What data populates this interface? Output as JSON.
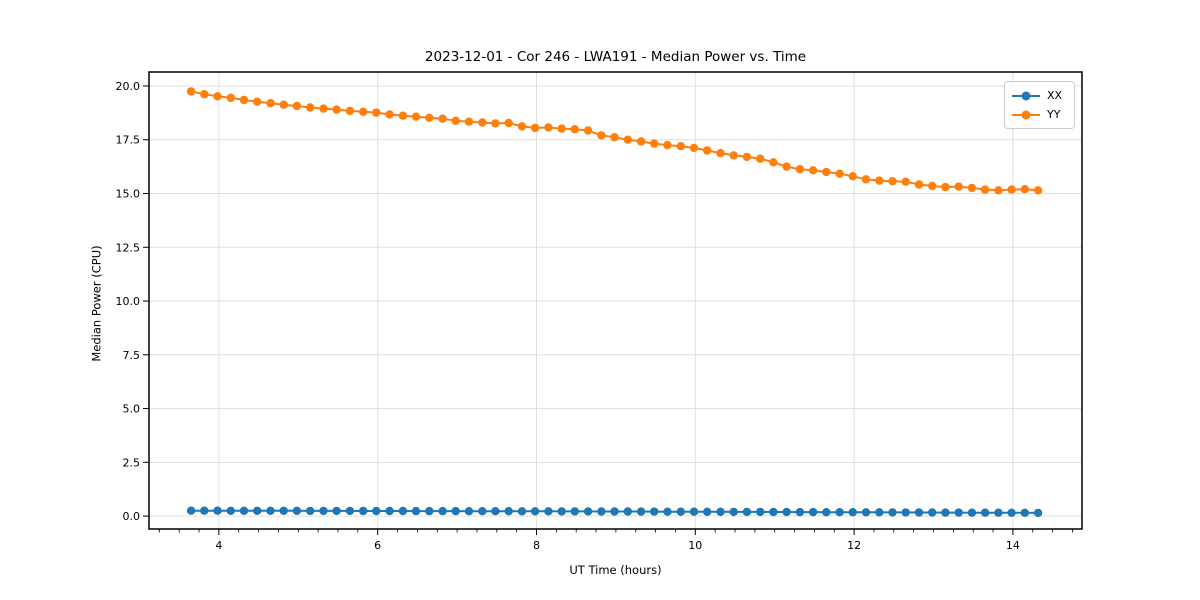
{
  "chart_data": {
    "type": "line",
    "title": "2023-12-01 - Cor 246 - LWA191 - Median Power vs. Time",
    "xlabel": "UT Time (hours)",
    "ylabel": "Median Power (CPU)",
    "xlim": [
      3.12,
      14.87
    ],
    "ylim": [
      -0.6,
      20.65
    ],
    "x_major_ticks": [
      4,
      6,
      8,
      10,
      12,
      14
    ],
    "x_minor_step": 0.25,
    "y_major_ticks": [
      0.0,
      2.5,
      5.0,
      7.5,
      10.0,
      12.5,
      15.0,
      17.5,
      20.0
    ],
    "grid": true,
    "legend_position": "upper right",
    "x": [
      3.65,
      3.817,
      3.983,
      4.15,
      4.317,
      4.483,
      4.65,
      4.817,
      4.983,
      5.15,
      5.317,
      5.483,
      5.65,
      5.817,
      5.983,
      6.15,
      6.317,
      6.483,
      6.65,
      6.817,
      6.983,
      7.15,
      7.317,
      7.483,
      7.65,
      7.817,
      7.983,
      8.15,
      8.317,
      8.483,
      8.65,
      8.817,
      8.983,
      9.15,
      9.317,
      9.483,
      9.65,
      9.817,
      9.983,
      10.15,
      10.317,
      10.483,
      10.65,
      10.817,
      10.983,
      11.15,
      11.317,
      11.483,
      11.65,
      11.817,
      11.983,
      12.15,
      12.317,
      12.483,
      12.65,
      12.817,
      12.983,
      13.15,
      13.317,
      13.483,
      13.65,
      13.817,
      13.983,
      14.15,
      14.317
    ],
    "series": [
      {
        "name": "XX",
        "color": "#1f77b4",
        "values": [
          0.25,
          0.25,
          0.249,
          0.248,
          0.247,
          0.247,
          0.246,
          0.245,
          0.244,
          0.243,
          0.242,
          0.241,
          0.24,
          0.239,
          0.238,
          0.237,
          0.236,
          0.234,
          0.233,
          0.232,
          0.231,
          0.23,
          0.228,
          0.227,
          0.226,
          0.224,
          0.223,
          0.221,
          0.22,
          0.218,
          0.217,
          0.215,
          0.213,
          0.212,
          0.21,
          0.208,
          0.206,
          0.205,
          0.203,
          0.201,
          0.199,
          0.197,
          0.195,
          0.193,
          0.191,
          0.189,
          0.187,
          0.185,
          0.183,
          0.181,
          0.179,
          0.177,
          0.175,
          0.172,
          0.17,
          0.168,
          0.166,
          0.164,
          0.162,
          0.16,
          0.158,
          0.156,
          0.154,
          0.152,
          0.15
        ]
      },
      {
        "name": "YY",
        "color": "#ff7f0e",
        "values": [
          19.75,
          19.62,
          19.52,
          19.45,
          19.35,
          19.27,
          19.2,
          19.13,
          19.07,
          19.0,
          18.95,
          18.9,
          18.84,
          18.8,
          18.76,
          18.68,
          18.62,
          18.57,
          18.52,
          18.48,
          18.38,
          18.34,
          18.3,
          18.26,
          18.28,
          18.12,
          18.05,
          18.07,
          18.02,
          17.99,
          17.93,
          17.7,
          17.62,
          17.5,
          17.42,
          17.32,
          17.25,
          17.2,
          17.12,
          17.0,
          16.88,
          16.77,
          16.7,
          16.62,
          16.45,
          16.25,
          16.13,
          16.08,
          16.0,
          15.92,
          15.8,
          15.66,
          15.6,
          15.57,
          15.55,
          15.42,
          15.35,
          15.3,
          15.32,
          15.26,
          15.18,
          15.15,
          15.18,
          15.2,
          15.15
        ]
      }
    ]
  },
  "style": {
    "grid_color": "#e0e0e0",
    "spine_color": "#000000",
    "tick_color": "#000000"
  }
}
